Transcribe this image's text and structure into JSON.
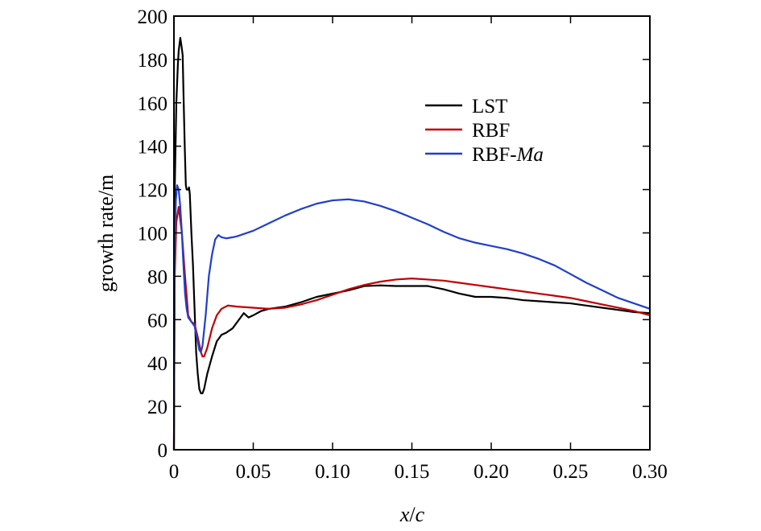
{
  "chart_data": {
    "type": "line",
    "xlabel_main": "x",
    "xlabel_sep": "/",
    "xlabel_tail": "c",
    "ylabel": "growth rate/m",
    "xlim": [
      0,
      0.3
    ],
    "ylim": [
      0,
      200
    ],
    "xticks": [
      0,
      0.05,
      0.1,
      0.15,
      0.2,
      0.25,
      0.3
    ],
    "xtick_labels": [
      "0",
      "0.05",
      "0.10",
      "0.15",
      "0.20",
      "0.25",
      "0.30"
    ],
    "yticks": [
      0,
      20,
      40,
      60,
      80,
      100,
      120,
      140,
      160,
      180,
      200
    ],
    "ytick_labels": [
      "0",
      "20",
      "40",
      "60",
      "80",
      "100",
      "120",
      "140",
      "160",
      "180",
      "200"
    ],
    "grid": false,
    "legend_position": "top-center",
    "series": [
      {
        "name": "LST",
        "color": "#000000",
        "points": [
          [
            0.0,
            0
          ],
          [
            0.0005,
            120
          ],
          [
            0.0015,
            160
          ],
          [
            0.0025,
            178
          ],
          [
            0.003,
            184
          ],
          [
            0.004,
            190
          ],
          [
            0.0048,
            186
          ],
          [
            0.0055,
            182
          ],
          [
            0.006,
            165
          ],
          [
            0.0068,
            140
          ],
          [
            0.0075,
            122
          ],
          [
            0.008,
            120
          ],
          [
            0.0085,
            120
          ],
          [
            0.009,
            120
          ],
          [
            0.0095,
            121
          ],
          [
            0.01,
            118
          ],
          [
            0.011,
            100
          ],
          [
            0.012,
            85
          ],
          [
            0.013,
            65
          ],
          [
            0.014,
            45
          ],
          [
            0.015,
            35
          ],
          [
            0.016,
            28
          ],
          [
            0.017,
            26
          ],
          [
            0.018,
            26
          ],
          [
            0.019,
            28
          ],
          [
            0.021,
            35
          ],
          [
            0.024,
            43
          ],
          [
            0.027,
            50
          ],
          [
            0.03,
            53
          ],
          [
            0.033,
            54
          ],
          [
            0.037,
            56
          ],
          [
            0.04,
            59
          ],
          [
            0.044,
            63
          ],
          [
            0.047,
            61
          ],
          [
            0.05,
            62
          ],
          [
            0.055,
            64
          ],
          [
            0.06,
            65
          ],
          [
            0.065,
            65.5
          ],
          [
            0.07,
            66
          ],
          [
            0.08,
            68
          ],
          [
            0.09,
            70.5
          ],
          [
            0.1,
            72
          ],
          [
            0.11,
            73.5
          ],
          [
            0.12,
            75.5
          ],
          [
            0.13,
            75.8
          ],
          [
            0.14,
            75.5
          ],
          [
            0.15,
            75.5
          ],
          [
            0.16,
            75.5
          ],
          [
            0.17,
            74
          ],
          [
            0.18,
            72
          ],
          [
            0.19,
            70.5
          ],
          [
            0.2,
            70.5
          ],
          [
            0.21,
            70
          ],
          [
            0.22,
            69
          ],
          [
            0.23,
            68.5
          ],
          [
            0.24,
            68
          ],
          [
            0.25,
            67.5
          ],
          [
            0.26,
            66.5
          ],
          [
            0.27,
            65.5
          ],
          [
            0.28,
            64.5
          ],
          [
            0.29,
            63.5
          ],
          [
            0.3,
            63
          ]
        ]
      },
      {
        "name": "RBF",
        "color": "#c00000",
        "points": [
          [
            0.0,
            0
          ],
          [
            0.0005,
            80
          ],
          [
            0.0015,
            105
          ],
          [
            0.003,
            112
          ],
          [
            0.005,
            100
          ],
          [
            0.007,
            80
          ],
          [
            0.009,
            62
          ],
          [
            0.011,
            59
          ],
          [
            0.013,
            58
          ],
          [
            0.015,
            52
          ],
          [
            0.017,
            45
          ],
          [
            0.018,
            43
          ],
          [
            0.019,
            43
          ],
          [
            0.021,
            47
          ],
          [
            0.024,
            56
          ],
          [
            0.027,
            62
          ],
          [
            0.03,
            65
          ],
          [
            0.034,
            66.5
          ],
          [
            0.04,
            66
          ],
          [
            0.05,
            65.5
          ],
          [
            0.06,
            65
          ],
          [
            0.07,
            65.5
          ],
          [
            0.08,
            67
          ],
          [
            0.09,
            69
          ],
          [
            0.1,
            71.5
          ],
          [
            0.11,
            74
          ],
          [
            0.12,
            76
          ],
          [
            0.13,
            77.5
          ],
          [
            0.14,
            78.5
          ],
          [
            0.15,
            79
          ],
          [
            0.16,
            78.5
          ],
          [
            0.17,
            78
          ],
          [
            0.18,
            77
          ],
          [
            0.19,
            76
          ],
          [
            0.2,
            75
          ],
          [
            0.21,
            74
          ],
          [
            0.22,
            73
          ],
          [
            0.23,
            72
          ],
          [
            0.24,
            71
          ],
          [
            0.25,
            70
          ],
          [
            0.26,
            68.5
          ],
          [
            0.27,
            67
          ],
          [
            0.28,
            65.5
          ],
          [
            0.29,
            64
          ],
          [
            0.3,
            62
          ]
        ]
      },
      {
        "name": "RBF-Ma",
        "color": "#1f3fcc",
        "points": [
          [
            0.0,
            0
          ],
          [
            0.0005,
            90
          ],
          [
            0.0012,
            115
          ],
          [
            0.002,
            122
          ],
          [
            0.003,
            120
          ],
          [
            0.004,
            112
          ],
          [
            0.005,
            100
          ],
          [
            0.006,
            85
          ],
          [
            0.007,
            72
          ],
          [
            0.008,
            65
          ],
          [
            0.009,
            61
          ],
          [
            0.011,
            59
          ],
          [
            0.013,
            57
          ],
          [
            0.015,
            50
          ],
          [
            0.016,
            46
          ],
          [
            0.017,
            45
          ],
          [
            0.018,
            48
          ],
          [
            0.02,
            62
          ],
          [
            0.022,
            80
          ],
          [
            0.024,
            90
          ],
          [
            0.026,
            97
          ],
          [
            0.028,
            99
          ],
          [
            0.03,
            98
          ],
          [
            0.033,
            97.5
          ],
          [
            0.037,
            98
          ],
          [
            0.04,
            98.5
          ],
          [
            0.05,
            101
          ],
          [
            0.06,
            104.5
          ],
          [
            0.07,
            108
          ],
          [
            0.08,
            111
          ],
          [
            0.09,
            113.5
          ],
          [
            0.1,
            115
          ],
          [
            0.11,
            115.5
          ],
          [
            0.12,
            114.5
          ],
          [
            0.13,
            112.5
          ],
          [
            0.14,
            110
          ],
          [
            0.15,
            107
          ],
          [
            0.16,
            104
          ],
          [
            0.17,
            100.5
          ],
          [
            0.18,
            97.5
          ],
          [
            0.19,
            95.5
          ],
          [
            0.2,
            94
          ],
          [
            0.21,
            92.5
          ],
          [
            0.22,
            90.5
          ],
          [
            0.23,
            88
          ],
          [
            0.24,
            85
          ],
          [
            0.25,
            81
          ],
          [
            0.26,
            77
          ],
          [
            0.27,
            73.5
          ],
          [
            0.28,
            70
          ],
          [
            0.29,
            67.5
          ],
          [
            0.3,
            65
          ]
        ]
      }
    ],
    "legend_labels": [
      {
        "series": 0,
        "text": "LST",
        "italic_suffix": ""
      },
      {
        "series": 1,
        "text": "RBF",
        "italic_suffix": ""
      },
      {
        "series": 2,
        "text": "RBF-",
        "italic_suffix": "Ma"
      }
    ]
  }
}
